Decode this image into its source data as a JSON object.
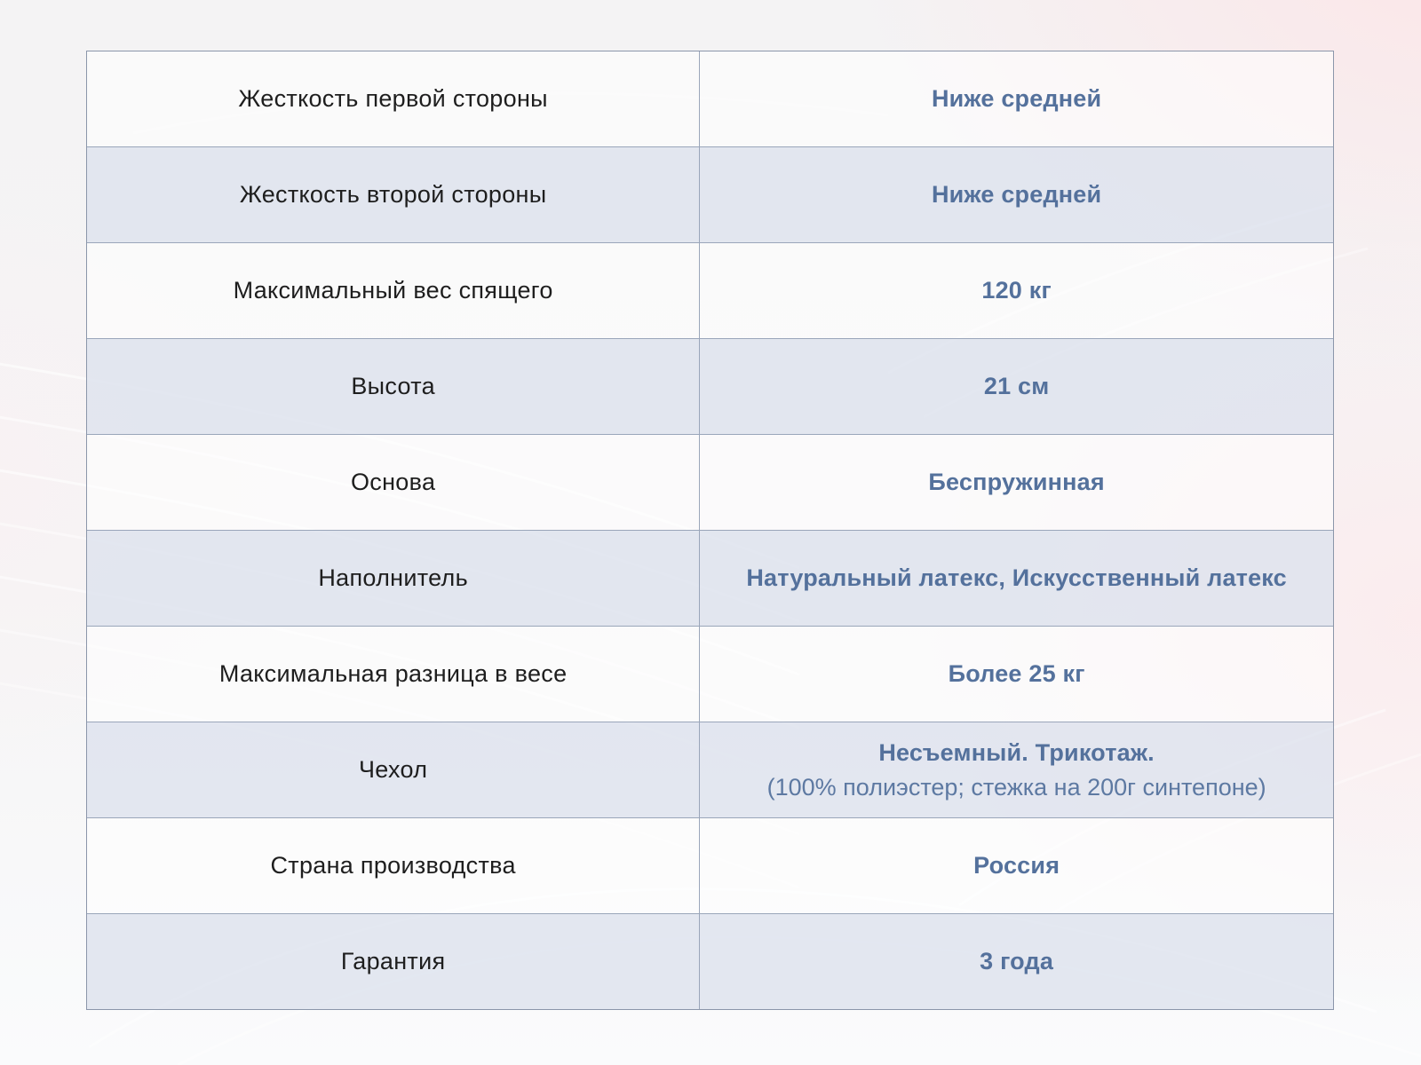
{
  "table": {
    "rows": [
      {
        "label": "Жесткость первой стороны",
        "value": "Ниже средней"
      },
      {
        "label": "Жесткость второй стороны",
        "value": "Ниже средней"
      },
      {
        "label": "Максимальный вес спящего",
        "value": "120 кг"
      },
      {
        "label": "Высота",
        "value": "21 см"
      },
      {
        "label": "Основа",
        "value": "Беспружинная"
      },
      {
        "label": "Наполнитель",
        "value": "Натуральный латекс, Искусственный латекс"
      },
      {
        "label": "Максимальная разница в весе",
        "value": "Более 25 кг"
      },
      {
        "label": "Чехол",
        "value": "Несъемный. Трикотаж.",
        "value_secondary": "(100% полиэстер; стежка на 200г синтепоне)"
      },
      {
        "label": "Страна производства",
        "value": "Россия"
      },
      {
        "label": "Гарантия",
        "value": "3 года"
      }
    ]
  },
  "colors": {
    "label_text": "#1e1e1e",
    "value_text": "#54719c",
    "table_border": "#8b96aa",
    "row_separator": "#9aa6ba",
    "row_alt_bg": "#dde2ee",
    "background_gray": "#f4f3f4",
    "background_pink": "#fce5e7"
  }
}
